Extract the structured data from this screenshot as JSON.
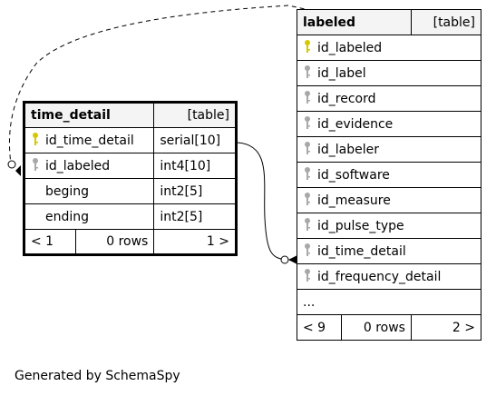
{
  "tables": {
    "time_detail": {
      "name": "time_detail",
      "kind": "[table]",
      "columns": [
        {
          "name": "id_time_detail",
          "type": "serial[10]",
          "key": "primary"
        },
        {
          "name": "id_labeled",
          "type": "int4[10]",
          "key": "foreign"
        },
        {
          "name": "beging",
          "type": "int2[5]",
          "key": "none"
        },
        {
          "name": "ending",
          "type": "int2[5]",
          "key": "none"
        }
      ],
      "footer": {
        "left": "< 1",
        "rows": "0 rows",
        "right": "1 >"
      }
    },
    "labeled": {
      "name": "labeled",
      "kind": "[table]",
      "columns": [
        {
          "name": "id_labeled",
          "key": "primary"
        },
        {
          "name": "id_label",
          "key": "foreign"
        },
        {
          "name": "id_record",
          "key": "foreign"
        },
        {
          "name": "id_evidence",
          "key": "foreign"
        },
        {
          "name": "id_labeler",
          "key": "foreign"
        },
        {
          "name": "id_software",
          "key": "foreign"
        },
        {
          "name": "id_measure",
          "key": "foreign"
        },
        {
          "name": "id_pulse_type",
          "key": "foreign"
        },
        {
          "name": "id_time_detail",
          "key": "foreign"
        },
        {
          "name": "id_frequency_detail",
          "key": "foreign"
        }
      ],
      "more": "...",
      "footer": {
        "left": "< 9",
        "rows": "0 rows",
        "right": "2 >"
      }
    }
  },
  "colors": {
    "primary_key": "#d4c800",
    "foreign_key": "#a8a8a8",
    "header_bg": "#f4f4f4"
  },
  "footer_text": "Generated by SchemaSpy"
}
